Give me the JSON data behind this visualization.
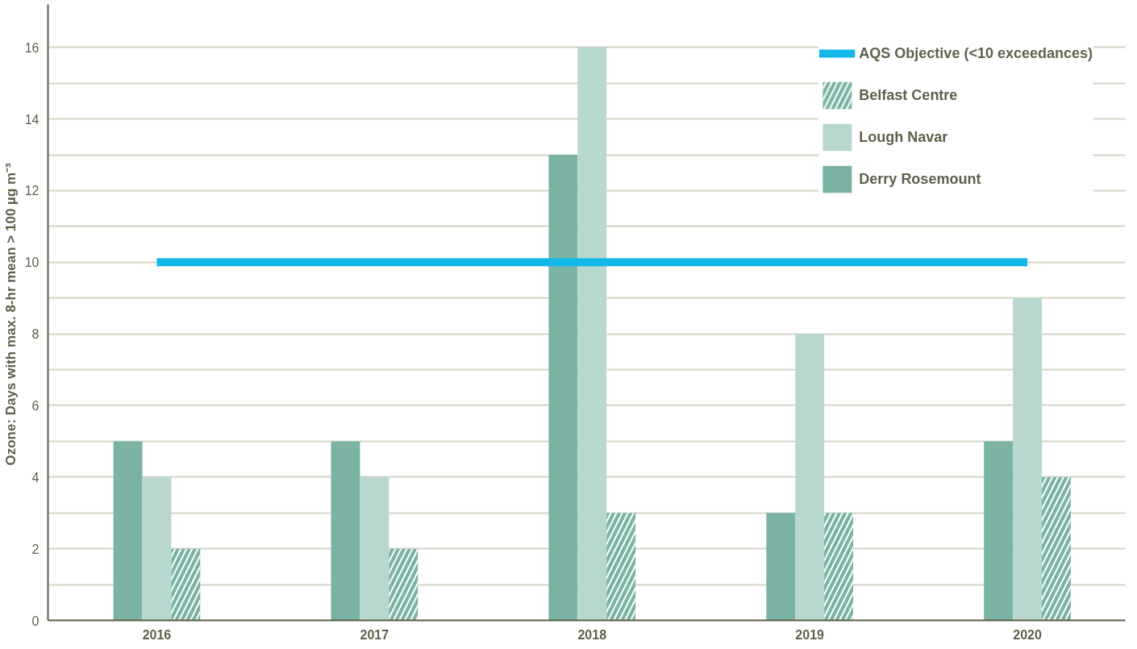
{
  "chart_data": {
    "type": "bar",
    "ylabel": "Ozone:  Days with max. 8-hr mean > 100 µg m⁻³",
    "categories": [
      "2016",
      "2017",
      "2018",
      "2019",
      "2020"
    ],
    "series": [
      {
        "name": "Derry Rosemount",
        "color": "#7ab3a4",
        "values": [
          5,
          5,
          13,
          3,
          5
        ]
      },
      {
        "name": "Lough Navar",
        "color": "#b8d8cf",
        "values": [
          4,
          4,
          16,
          8,
          9
        ]
      },
      {
        "name": "Belfast Centre",
        "color": "#7ab3a4",
        "values": [
          2,
          2,
          3,
          3,
          4
        ]
      }
    ],
    "ref_lines": [
      {
        "axis": "y",
        "value": 10,
        "label": "AQS Objective (<10 exceedances)",
        "color": "#12b9e8"
      }
    ],
    "ylim": [
      0,
      17.2
    ],
    "yticks": [
      0,
      {
        "value": 1,
        "label": null
      },
      2,
      {
        "value": 3,
        "label": null
      },
      4,
      {
        "value": 5,
        "label": null
      },
      6,
      {
        "value": 7,
        "label": null
      },
      8,
      {
        "value": 9,
        "label": null
      },
      10,
      {
        "value": 11,
        "label": null
      },
      12,
      {
        "value": 13,
        "label": null
      },
      14,
      {
        "value": 15,
        "label": null
      },
      16
    ],
    "grid": "y",
    "legend": "top right"
  }
}
